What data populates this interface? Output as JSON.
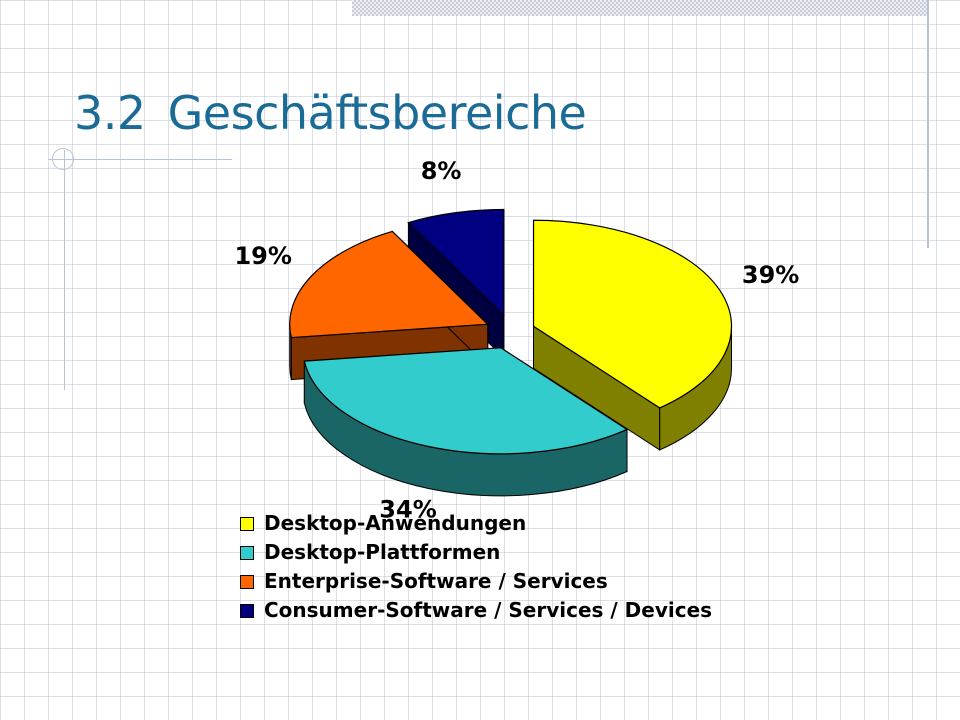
{
  "slide": {
    "title_number": "3.2",
    "title_text": "Geschäftsbereiche"
  },
  "chart_data": {
    "type": "pie",
    "title": "",
    "categories": [
      "Desktop-Anwendungen",
      "Desktop-Plattformen",
      "Enterprise-Software / Services",
      "Consumer-Software / Services / Devices"
    ],
    "values": [
      39,
      34,
      19,
      8
    ],
    "value_labels": [
      "39%",
      "34%",
      "19%",
      "8%"
    ],
    "colors": [
      "#ffff00",
      "#33cccc",
      "#ff6600",
      "#000080"
    ],
    "side_colors": [
      "#808000",
      "#1a6666",
      "#803300",
      "#000040"
    ],
    "exploded": true,
    "three_d": true,
    "legend_position": "bottom"
  }
}
